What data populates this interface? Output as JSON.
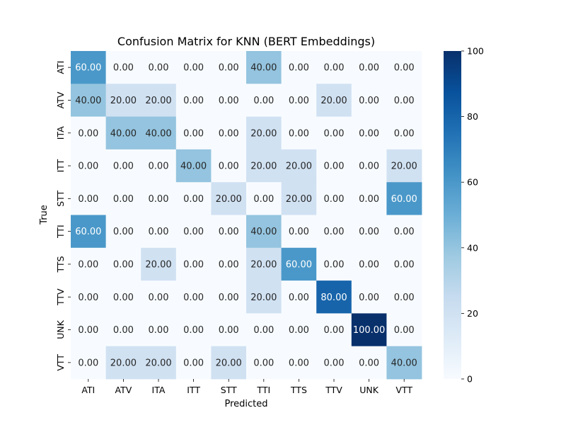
{
  "chart_data": {
    "type": "heatmap",
    "title": "Confusion Matrix for KNN (BERT Embeddings)",
    "xlabel": "Predicted",
    "ylabel": "True",
    "x_categories": [
      "ATI",
      "ATV",
      "ITA",
      "ITT",
      "STT",
      "TTI",
      "TTS",
      "TTV",
      "UNK",
      "VTT"
    ],
    "y_categories": [
      "ATI",
      "ATV",
      "ITA",
      "ITT",
      "STT",
      "TTI",
      "TTS",
      "TTV",
      "UNK",
      "VTT"
    ],
    "values": [
      [
        60,
        0,
        0,
        0,
        0,
        40,
        0,
        0,
        0,
        0
      ],
      [
        40,
        20,
        20,
        0,
        0,
        0,
        0,
        20,
        0,
        0
      ],
      [
        0,
        40,
        40,
        0,
        0,
        20,
        0,
        0,
        0,
        0
      ],
      [
        0,
        0,
        0,
        40,
        0,
        20,
        20,
        0,
        0,
        20
      ],
      [
        0,
        0,
        0,
        0,
        20,
        0,
        20,
        0,
        0,
        60
      ],
      [
        60,
        0,
        0,
        0,
        0,
        40,
        0,
        0,
        0,
        0
      ],
      [
        0,
        0,
        20,
        0,
        0,
        20,
        60,
        0,
        0,
        0
      ],
      [
        0,
        0,
        0,
        0,
        0,
        20,
        0,
        80,
        0,
        0
      ],
      [
        0,
        0,
        0,
        0,
        0,
        0,
        0,
        0,
        100,
        0
      ],
      [
        0,
        20,
        20,
        0,
        20,
        0,
        0,
        0,
        0,
        40
      ]
    ],
    "value_format": "2 decimals",
    "colorbar": {
      "range": [
        0,
        100
      ],
      "ticks": [
        0,
        20,
        40,
        60,
        80,
        100
      ],
      "colormap": "Blues",
      "colors": [
        "#f7fbff",
        "#deebf7",
        "#c6dbef",
        "#9ecae1",
        "#6baed6",
        "#4292c6",
        "#2171b5",
        "#08519c",
        "#08306b"
      ]
    }
  }
}
